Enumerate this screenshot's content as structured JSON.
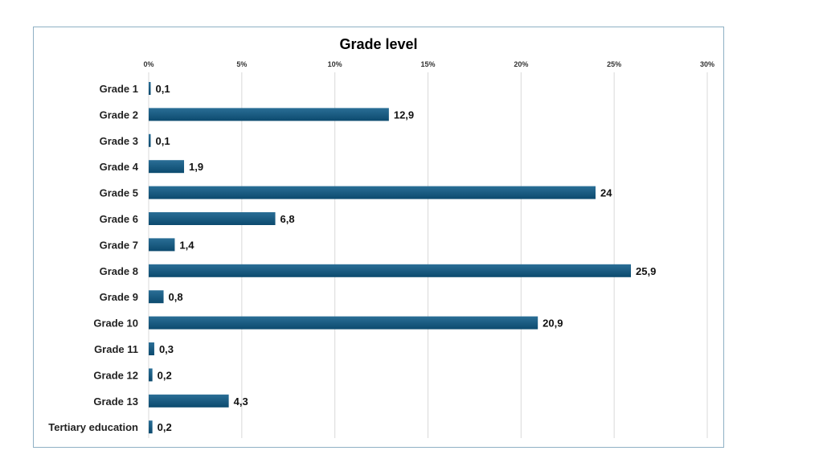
{
  "chart_data": {
    "type": "bar",
    "orientation": "horizontal",
    "title": "Grade level",
    "categories": [
      "Grade 1",
      "Grade 2",
      "Grade 3",
      "Grade 4",
      "Grade 5",
      "Grade 6",
      "Grade 7",
      "Grade 8",
      "Grade 9",
      "Grade 10",
      "Grade 11",
      "Grade 12",
      "Grade 13",
      "Tertiary education"
    ],
    "values": [
      0.1,
      12.9,
      0.1,
      1.9,
      24,
      6.8,
      1.4,
      25.9,
      0.8,
      20.9,
      0.3,
      0.2,
      4.3,
      0.2
    ],
    "data_labels": [
      "0,1",
      "12,9",
      "0,1",
      "1,9",
      "24",
      "6,8",
      "1,4",
      "25,9",
      "0,8",
      "20,9",
      "0,3",
      "0,2",
      "4,3",
      "0,2"
    ],
    "xlim": [
      0,
      30
    ],
    "ticks": [
      0,
      5,
      10,
      15,
      20,
      25,
      30
    ],
    "tick_labels": [
      "0%",
      "5%",
      "10%",
      "15%",
      "20%",
      "25%",
      "30%"
    ],
    "xlabel": "",
    "ylabel": "",
    "grid": true,
    "colors": {
      "bar_top": "#2a6e96",
      "bar_bottom": "#0c4a6e",
      "grid": "#d9d9d9",
      "border": "#8fb0c4"
    }
  }
}
